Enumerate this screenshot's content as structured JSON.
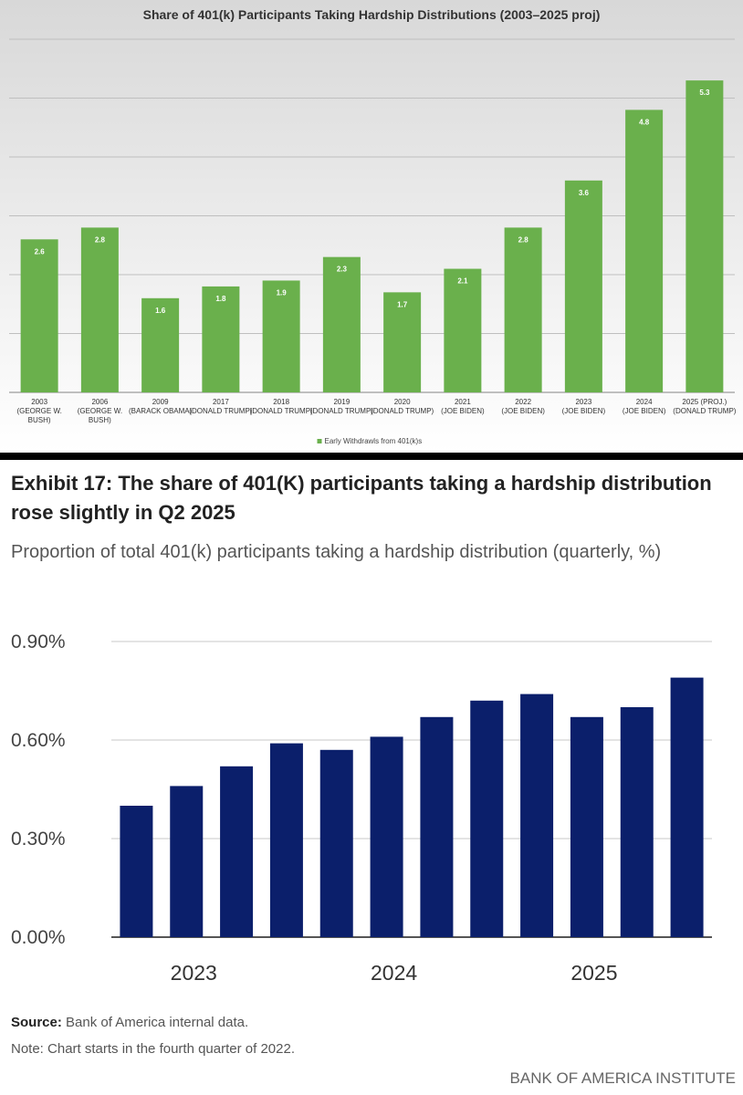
{
  "chart_data": [
    {
      "type": "bar",
      "title": "Share of 401(k) Participants Taking Hardship Distributions (2003–2025 proj)",
      "categories": [
        "2003\n(GEORGE W.\nBUSH)",
        "2006\n(GEORGE W.\nBUSH)",
        "2009\n(BARACK OBAMA)",
        "2017\n(DONALD TRUMP)",
        "2018\n(DONALD TRUMP)",
        "2019\n(DONALD TRUMP)",
        "2020\n(DONALD TRUMP)",
        "2021\n(JOE BIDEN)",
        "2022\n(JOE BIDEN)",
        "2023\n(JOE BIDEN)",
        "2024\n(JOE BIDEN)",
        "2025 (PROJ.)\n(DONALD TRUMP)"
      ],
      "series": [
        {
          "name": "Early Withdrawls from 401(k)s",
          "color": "#6ab04c",
          "values": [
            2.6,
            2.8,
            1.6,
            1.8,
            1.9,
            2.3,
            1.7,
            2.1,
            2.8,
            3.6,
            4.8,
            5.3
          ]
        }
      ],
      "ylim": [
        0,
        6
      ],
      "yticks": [
        0,
        1,
        2,
        3,
        4,
        5,
        6
      ],
      "ytick_labels": false,
      "grid": true,
      "legend": "bottom"
    },
    {
      "type": "bar",
      "title": "Exhibit 17: The share of 401(K) participants taking a hardship distribution rose slightly in Q2 2025",
      "subtitle": "Proportion of total 401(k) participants taking a hardship distribution (quarterly, %)",
      "categories": [
        null,
        "2023",
        null,
        null,
        null,
        "2024",
        null,
        null,
        null,
        "2025",
        null,
        null
      ],
      "series": [
        {
          "color": "#0b1f6b",
          "values": [
            0.4,
            0.46,
            0.52,
            0.59,
            0.57,
            0.61,
            0.67,
            0.72,
            0.74,
            0.67,
            0.7,
            0.79
          ]
        }
      ],
      "ylim": [
        0,
        0.9
      ],
      "yticks": [
        {
          "value": 0,
          "label": "0.00%"
        },
        {
          "value": 0.3,
          "label": "0.30%"
        },
        {
          "value": 0.6,
          "label": "0.60%"
        },
        {
          "value": 0.9,
          "label": "0.90%"
        }
      ],
      "ytick_labels": true,
      "grid": true
    }
  ],
  "footer": {
    "source_label": "Source:",
    "source": "Bank of America internal data.",
    "note": "Note: Chart starts in the fourth quarter of 2022.",
    "brand": "BANK OF AMERICA INSTITUTE"
  }
}
